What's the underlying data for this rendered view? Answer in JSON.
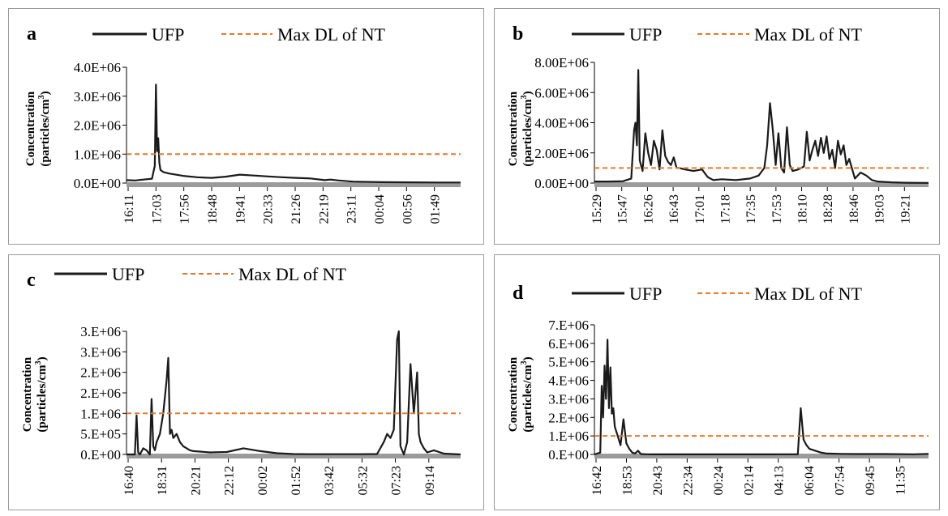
{
  "legend": {
    "ufp": "UFP",
    "maxdl": "Max DL of NT"
  },
  "colors": {
    "ufp": "#1a1a1a",
    "maxdl": "#E8792B",
    "baseline": "#9b9b9b"
  },
  "chart_data": [
    {
      "panel": "a",
      "type": "line",
      "ylabel_line1": "Concentration",
      "ylabel_line2": "(particles/cm",
      "ylabel_sup": "3",
      "ylabel_end": ")",
      "yticks": [
        "0.0E+00",
        "1.0E+06",
        "2.0E+06",
        "3.0E+06",
        "4.0E+06"
      ],
      "ylim": [
        0,
        4000000
      ],
      "xticks": [
        "16:11",
        "17:03",
        "17:56",
        "18:48",
        "19:41",
        "20:33",
        "21:26",
        "22:19",
        "23:11",
        "00:04",
        "00:56",
        "01:49"
      ],
      "series": [
        {
          "name": "UFP",
          "x": [
            0,
            0.3,
            0.6,
            0.9,
            1.0,
            1.04,
            1.08,
            1.12,
            1.16,
            1.2,
            1.3,
            1.5,
            2,
            2.5,
            3,
            3.5,
            4,
            4.5,
            5,
            5.5,
            6,
            6.5,
            7,
            7.2,
            7.5,
            8,
            9,
            10,
            11,
            11.8
          ],
          "y": [
            100000,
            90000,
            120000,
            150000,
            600000,
            3400000,
            1100000,
            1550000,
            700000,
            450000,
            380000,
            330000,
            250000,
            200000,
            180000,
            220000,
            290000,
            260000,
            230000,
            200000,
            180000,
            160000,
            100000,
            120000,
            90000,
            50000,
            30000,
            25000,
            20000,
            20000
          ]
        },
        {
          "name": "Max DL of NT",
          "x": [
            0,
            11.8
          ],
          "y": [
            1000000,
            1000000
          ]
        }
      ]
    },
    {
      "panel": "b",
      "type": "line",
      "ylabel_line1": "Concentration",
      "ylabel_line2": "(particles/cm",
      "ylabel_sup": "3",
      "ylabel_end": ")",
      "yticks": [
        "0.00E+00",
        "2.00E+06",
        "4.00E+06",
        "6.00E+06",
        "8.00E+06"
      ],
      "ylim": [
        0,
        8000000
      ],
      "xticks": [
        "15:29",
        "15:47",
        "16:26",
        "16:43",
        "17:01",
        "17:18",
        "17:35",
        "17:53",
        "18:10",
        "18:28",
        "18:46",
        "19:03",
        "19:21"
      ],
      "series": [
        {
          "name": "UFP",
          "x": [
            0,
            0.5,
            1.0,
            1.3,
            1.4,
            1.45,
            1.5,
            1.55,
            1.6,
            1.7,
            1.8,
            1.9,
            2.0,
            2.1,
            2.2,
            2.3,
            2.4,
            2.5,
            2.6,
            2.7,
            2.8,
            2.9,
            3.0,
            3.2,
            3.5,
            3.8,
            4.0,
            4.2,
            4.5,
            5.0,
            5.5,
            5.8,
            6.0,
            6.1,
            6.2,
            6.3,
            6.4,
            6.5,
            6.6,
            6.7,
            6.8,
            6.9,
            7.0,
            7.2,
            7.4,
            7.5,
            7.6,
            7.7,
            7.8,
            7.9,
            8.0,
            8.1,
            8.2,
            8.3,
            8.4,
            8.5,
            8.6,
            8.7,
            8.8,
            8.9,
            9.0,
            9.2,
            9.4,
            9.6,
            9.8,
            10,
            10.5,
            11,
            11.8
          ],
          "y": [
            100000,
            100000,
            120000,
            300000,
            3500000,
            4000000,
            2500000,
            7500000,
            1500000,
            800000,
            3300000,
            2000000,
            1200000,
            2800000,
            2200000,
            900000,
            3500000,
            1800000,
            1400000,
            1200000,
            1700000,
            1000000,
            1000000,
            900000,
            800000,
            900000,
            400000,
            200000,
            250000,
            200000,
            300000,
            500000,
            1000000,
            2500000,
            5300000,
            3500000,
            1200000,
            3300000,
            1000000,
            700000,
            3700000,
            1200000,
            800000,
            900000,
            1100000,
            3400000,
            1500000,
            2200000,
            2800000,
            1800000,
            3000000,
            2000000,
            3100000,
            1600000,
            2200000,
            1000000,
            2800000,
            1900000,
            2500000,
            1200000,
            1600000,
            300000,
            700000,
            500000,
            200000,
            100000,
            50000,
            20000,
            10000
          ]
        },
        {
          "name": "Max DL of NT",
          "x": [
            0,
            11.8
          ],
          "y": [
            1000000,
            1000000
          ]
        }
      ]
    },
    {
      "panel": "c",
      "type": "line",
      "ylabel_line1": "Concentration",
      "ylabel_line2": "(particles/cm",
      "ylabel_sup": "3",
      "ylabel_end": ")",
      "yticks": [
        "0.E+00",
        "5.E+05",
        "1.E+06",
        "2.E+06",
        "2.E+06",
        "3.E+06",
        "3.E+06"
      ],
      "ylim": [
        0,
        3000000
      ],
      "xticks": [
        "16:40",
        "18:31",
        "20:21",
        "22:12",
        "00:02",
        "01:52",
        "03:42",
        "05:32",
        "07:23",
        "09:14"
      ],
      "series": [
        {
          "name": "UFP",
          "x": [
            0,
            0.25,
            0.3,
            0.35,
            0.4,
            0.5,
            0.6,
            0.7,
            0.75,
            0.8,
            0.85,
            0.9,
            1.0,
            1.1,
            1.2,
            1.25,
            1.3,
            1.35,
            1.4,
            1.5,
            1.6,
            1.7,
            1.8,
            1.9,
            2.0,
            2.2,
            2.5,
            3.0,
            3.5,
            4.0,
            4.5,
            5.0,
            5.5,
            6.0,
            6.5,
            7.0,
            7.5,
            7.7,
            7.8,
            7.9,
            8.0,
            8.1,
            8.15,
            8.2,
            8.3,
            8.4,
            8.5,
            8.6,
            8.7,
            8.75,
            8.8,
            8.9,
            9.0,
            9.2,
            9.5,
            10
          ],
          "y": [
            0,
            0,
            950000,
            50000,
            0,
            150000,
            100000,
            0,
            1350000,
            200000,
            100000,
            300000,
            500000,
            1000000,
            1800000,
            2350000,
            500000,
            600000,
            400000,
            500000,
            300000,
            200000,
            150000,
            100000,
            80000,
            70000,
            50000,
            60000,
            150000,
            80000,
            30000,
            10000,
            5000,
            5000,
            5000,
            5000,
            10000,
            300000,
            500000,
            400000,
            600000,
            2800000,
            3000000,
            200000,
            0,
            300000,
            2200000,
            1000000,
            2000000,
            500000,
            300000,
            150000,
            50000,
            100000,
            20000,
            0
          ]
        },
        {
          "name": "Max DL of NT",
          "x": [
            0,
            10
          ],
          "y": [
            1000000,
            1000000
          ]
        }
      ]
    },
    {
      "panel": "d",
      "type": "line",
      "ylabel_line1": "Concentration",
      "ylabel_line2": "(particles/cm",
      "ylabel_sup": "3",
      "ylabel_end": ")",
      "yticks": [
        "0.E+00",
        "1.E+06",
        "2.E+06",
        "3.E+06",
        "4.E+06",
        "5.E+06",
        "6.E+06",
        "7.E+06"
      ],
      "ylim": [
        0,
        7000000
      ],
      "xticks": [
        "16:42",
        "18:53",
        "20:43",
        "22:34",
        "00:24",
        "02:14",
        "04:13",
        "06:04",
        "07:54",
        "09:45",
        "11:35"
      ],
      "series": [
        {
          "name": "UFP",
          "x": [
            0,
            0.2,
            0.25,
            0.3,
            0.35,
            0.4,
            0.45,
            0.5,
            0.55,
            0.6,
            0.65,
            0.7,
            0.8,
            0.9,
            1.0,
            1.1,
            1.2,
            1.3,
            1.4,
            1.5,
            1.6,
            1.8,
            2.0,
            2.5,
            3,
            4,
            5,
            6,
            7,
            7.1,
            7.2,
            7.3,
            7.4,
            7.6,
            7.8,
            8.0,
            8.5,
            9,
            10,
            11,
            11.5
          ],
          "y": [
            0,
            100000,
            3700000,
            2000000,
            4800000,
            3000000,
            6200000,
            2500000,
            4700000,
            2200000,
            2500000,
            1500000,
            1000000,
            500000,
            1900000,
            600000,
            300000,
            100000,
            50000,
            200000,
            20000,
            10000,
            5000,
            5000,
            5000,
            5000,
            5000,
            5000,
            10000,
            2500000,
            800000,
            500000,
            300000,
            200000,
            100000,
            50000,
            30000,
            20000,
            20000,
            10000,
            30000
          ]
        },
        {
          "name": "Max DL of NT",
          "x": [
            0,
            11.5
          ],
          "y": [
            1000000,
            1000000
          ]
        }
      ]
    }
  ]
}
